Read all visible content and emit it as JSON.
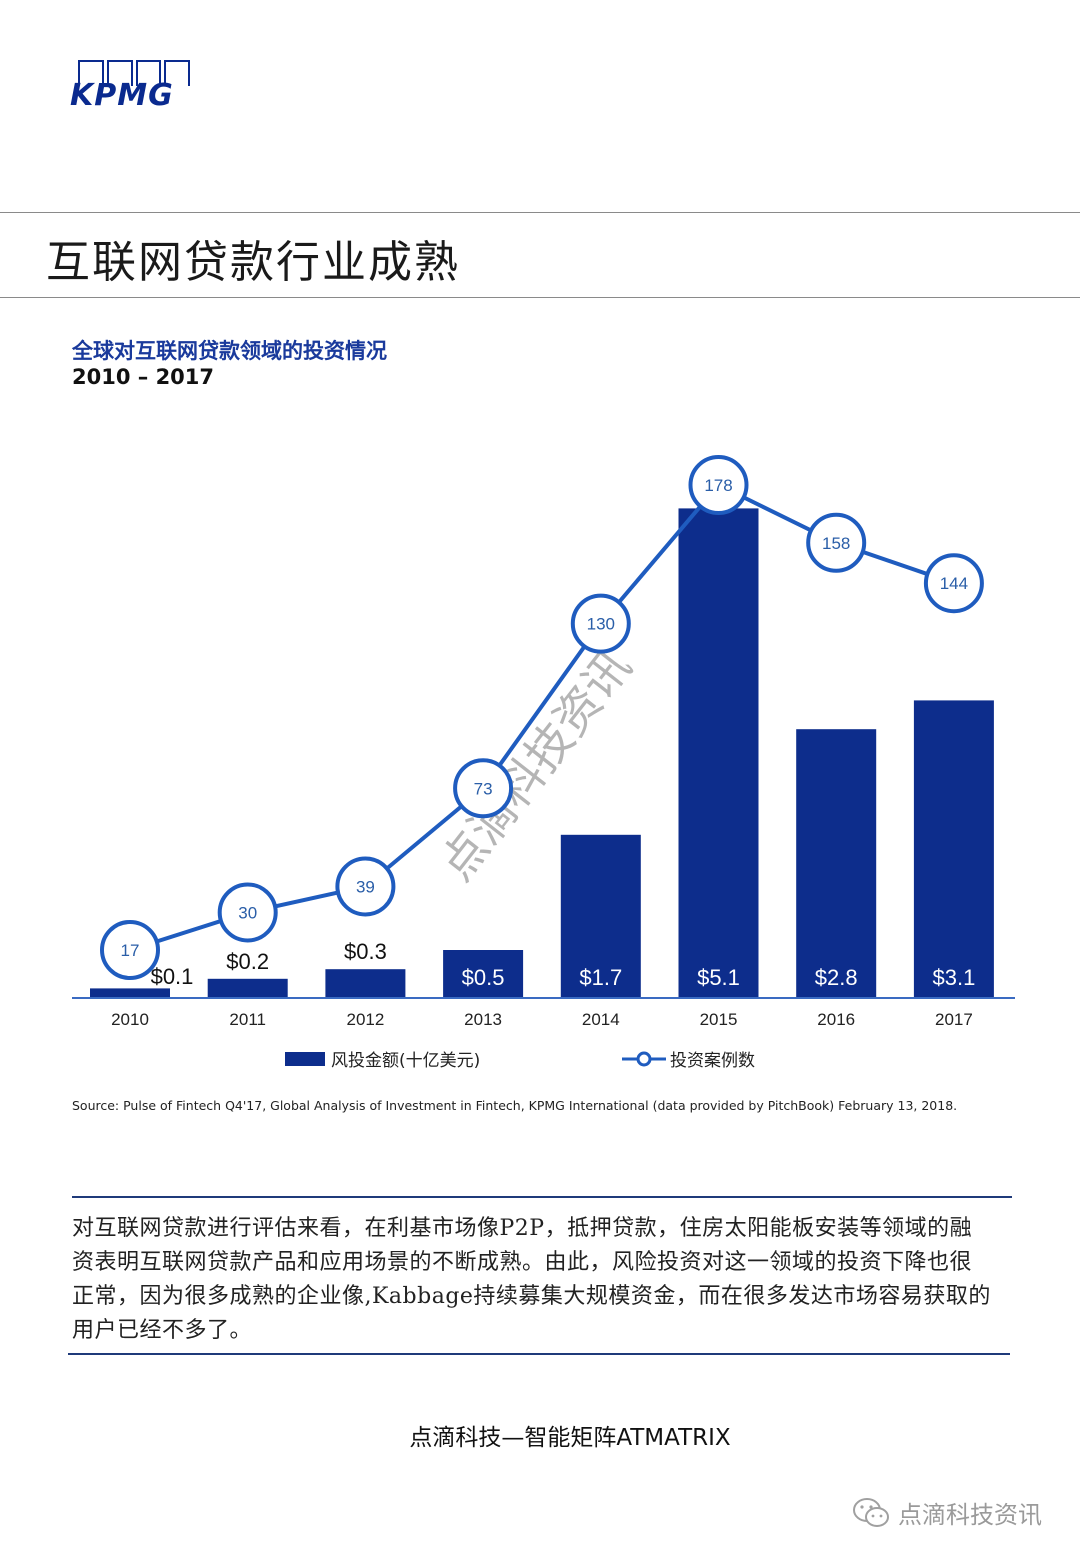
{
  "logo": {
    "text": "KPMG"
  },
  "page": {
    "title": "互联网贷款行业成熟"
  },
  "chart_data": {
    "type": "bar",
    "title": "全球对互联网贷款领域的投资情况",
    "subtitle": "2010 – 2017",
    "categories": [
      "2010",
      "2011",
      "2012",
      "2013",
      "2014",
      "2015",
      "2016",
      "2017"
    ],
    "series": [
      {
        "name": "风投金额(十亿美元)",
        "kind": "bar",
        "color": "#0d2d8c",
        "values": [
          0.1,
          0.2,
          0.3,
          0.5,
          1.7,
          5.1,
          2.8,
          3.1
        ],
        "labels": [
          "$0.1",
          "$0.2",
          "$0.3",
          "$0.5",
          "$1.7",
          "$5.1",
          "$2.8",
          "$3.1"
        ]
      },
      {
        "name": "投资案例数",
        "kind": "line",
        "color": "#1f5cbf",
        "values": [
          17,
          30,
          39,
          73,
          130,
          178,
          158,
          144
        ],
        "labels": [
          "17",
          "30",
          "39",
          "73",
          "130",
          "178",
          "158",
          "144"
        ]
      }
    ],
    "legend": {
      "placement": "bottom"
    },
    "source": "Source: Pulse of Fintech Q4'17, Global Analysis of Investment in Fintech, KPMG International (data provided by PitchBook) February 13, 2018."
  },
  "watermark": "点滴科技资讯",
  "body": {
    "text": "对互联网贷款进行评估来看，在利基市场像P2P，抵押贷款，住房太阳能板安装等领域的融资表明互联网贷款产品和应用场景的不断成熟。由此，风险投资对这一领域的投资下降也很正常，因为很多成熟的企业像,Kabbage持续募集大规模资金，而在很多发达市场容易获取的用户已经不多了。"
  },
  "footer": {
    "title": "点滴科技—智能矩阵ATMATRIX"
  },
  "wechat": {
    "icon": "wechat-icon",
    "account": "点滴科技资讯"
  }
}
